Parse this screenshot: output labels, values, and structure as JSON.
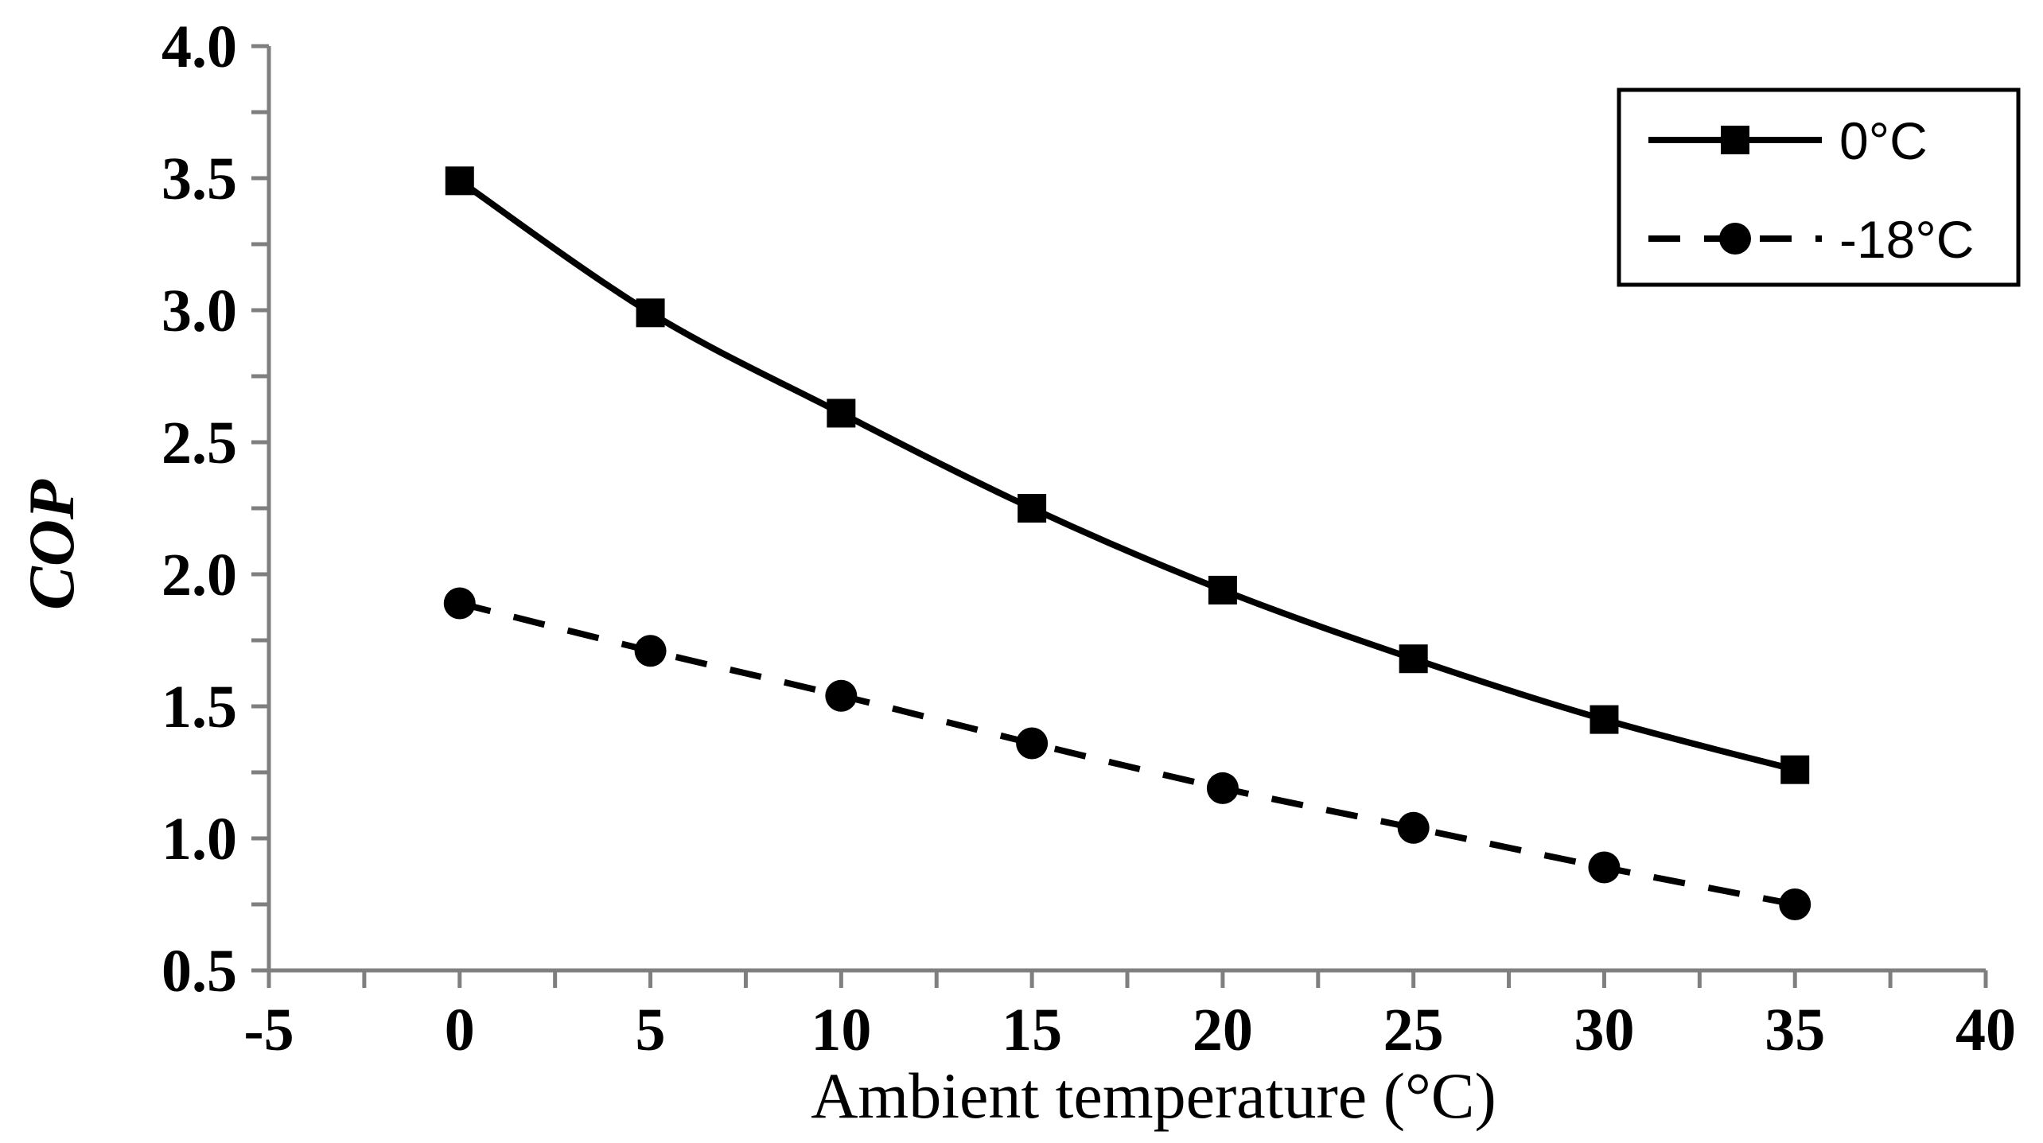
{
  "chart_data": {
    "type": "line",
    "title": "",
    "xlabel": "Ambient temperature (°C)",
    "ylabel": "COP",
    "xlim": [
      -5,
      40
    ],
    "ylim": [
      0.5,
      4.0
    ],
    "x_ticks": [
      "-5",
      "0",
      "5",
      "10",
      "15",
      "20",
      "25",
      "30",
      "35",
      "40"
    ],
    "y_ticks": [
      "0.5",
      "1.0",
      "1.5",
      "2.0",
      "2.5",
      "3.0",
      "3.5",
      "4.0"
    ],
    "x": [
      0,
      5,
      10,
      15,
      20,
      25,
      30,
      35
    ],
    "series": [
      {
        "name": "0°C",
        "values": [
          3.49,
          2.99,
          2.61,
          2.25,
          1.94,
          1.68,
          1.45,
          1.26
        ],
        "line": "solid",
        "marker": "square"
      },
      {
        "name": "-18°C",
        "values": [
          1.89,
          1.71,
          1.54,
          1.36,
          1.19,
          1.04,
          0.89,
          0.75
        ],
        "line": "dashed",
        "marker": "circle"
      }
    ],
    "legend_position": "top-right",
    "colors": {
      "series": "#000000",
      "axis": "#7f7f7f"
    }
  }
}
